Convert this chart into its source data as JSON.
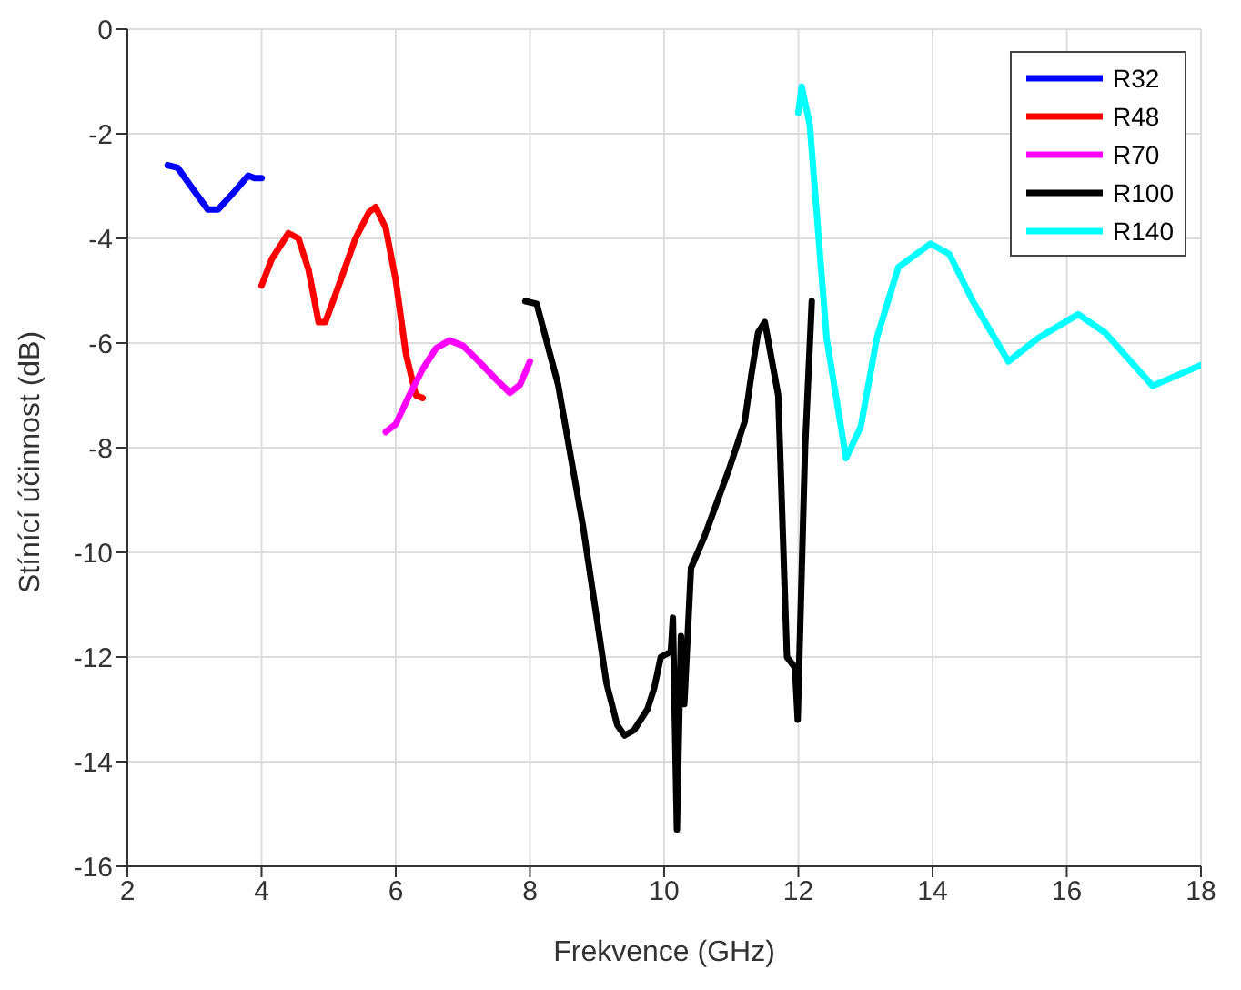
{
  "chart_data": {
    "type": "line",
    "xlabel": "Frekvence (GHz)",
    "ylabel": "Stínící účinnost (dB)",
    "xlim": [
      2,
      18
    ],
    "xticks": [
      2,
      4,
      6,
      8,
      10,
      12,
      14,
      16,
      18
    ],
    "ylim": [
      -16,
      0
    ],
    "yticks": [
      -16,
      -14,
      -12,
      -10,
      -8,
      -6,
      -4,
      -2,
      0
    ],
    "grid": true,
    "legend": "top right",
    "marker": "none",
    "line_style": "solid",
    "series": [
      {
        "name": "R32",
        "color": "#0000ff",
        "x": [
          2.6,
          2.75,
          3.0,
          3.2,
          3.35,
          3.6,
          3.8,
          3.9,
          4.0
        ],
        "values": [
          -2.6,
          -2.65,
          -3.1,
          -3.45,
          -3.45,
          -3.1,
          -2.8,
          -2.85,
          -2.85
        ]
      },
      {
        "name": "R48",
        "color": "#ff0000",
        "x": [
          4.0,
          4.15,
          4.4,
          4.55,
          4.7,
          4.85,
          4.95,
          5.15,
          5.4,
          5.6,
          5.7,
          5.85,
          6.0,
          6.15,
          6.3,
          6.4
        ],
        "values": [
          -4.9,
          -4.4,
          -3.9,
          -4.0,
          -4.6,
          -5.6,
          -5.6,
          -4.9,
          -4.0,
          -3.5,
          -3.4,
          -3.8,
          -4.8,
          -6.2,
          -7.0,
          -7.05
        ]
      },
      {
        "name": "R70",
        "color": "#ff00ff",
        "x": [
          5.85,
          6.0,
          6.2,
          6.4,
          6.6,
          6.8,
          7.0,
          7.2,
          7.5,
          7.7,
          7.85,
          8.0
        ],
        "values": [
          -7.7,
          -7.55,
          -7.0,
          -6.5,
          -6.1,
          -5.95,
          -6.05,
          -6.3,
          -6.7,
          -6.95,
          -6.8,
          -6.35
        ]
      },
      {
        "name": "R100",
        "color": "#000000",
        "x": [
          7.93,
          8.1,
          8.42,
          8.79,
          9.14,
          9.3,
          9.41,
          9.55,
          9.75,
          9.85,
          9.95,
          10.1,
          10.13,
          10.19,
          10.25,
          10.3,
          10.4,
          10.6,
          10.97,
          11.2,
          11.3,
          11.4,
          11.5,
          11.7,
          11.83,
          11.95,
          11.99,
          12.1,
          12.2
        ],
        "values": [
          -5.2,
          -5.25,
          -6.8,
          -9.5,
          -12.5,
          -13.3,
          -13.5,
          -13.4,
          -13.0,
          -12.6,
          -12.0,
          -11.9,
          -11.25,
          -15.3,
          -11.6,
          -12.9,
          -10.3,
          -9.7,
          -8.4,
          -7.5,
          -6.6,
          -5.8,
          -5.6,
          -7.0,
          -12.0,
          -12.2,
          -13.2,
          -8.0,
          -5.2
        ]
      },
      {
        "name": "R140",
        "color": "#00ffff",
        "x": [
          12.0,
          12.05,
          12.17,
          12.42,
          12.71,
          12.93,
          13.17,
          13.49,
          13.97,
          14.25,
          14.6,
          15.13,
          15.58,
          16.17,
          16.57,
          17.28,
          18.0
        ],
        "values": [
          -1.6,
          -1.1,
          -1.83,
          -5.9,
          -8.2,
          -7.6,
          -5.9,
          -4.55,
          -4.1,
          -4.3,
          -5.2,
          -6.35,
          -5.9,
          -5.45,
          -5.8,
          -6.82,
          -6.42
        ]
      }
    ]
  }
}
